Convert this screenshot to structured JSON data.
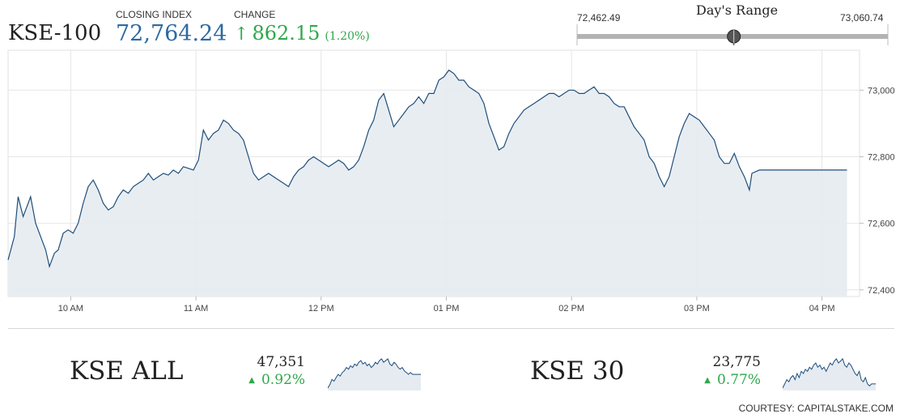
{
  "header": {
    "index_name": "KSE-100",
    "closing_label": "CLOSING INDEX",
    "closing_value": "72,764.24",
    "change_label": "CHANGE",
    "change_arrow": "↑",
    "change_value": "862.15",
    "change_pct": "(1.20%)",
    "up_color": "#2ea84a",
    "value_color": "#2d6aa0"
  },
  "days_range": {
    "title": "Day's Range",
    "low_label": "72,462.49",
    "high_label": "73,060.74",
    "low": 72462.49,
    "high": 73060.74,
    "current": 72764.24
  },
  "chart_data": {
    "type": "area",
    "x_ticks": [
      "10 AM",
      "11 AM",
      "12 PM",
      "01 PM",
      "02 PM",
      "03 PM",
      "04 PM"
    ],
    "y_ticks": [
      "72,400",
      "72,600",
      "72,800",
      "73,000"
    ],
    "ylim": [
      72380,
      73120
    ],
    "xlim": [
      9.5,
      16.3
    ],
    "grid": true,
    "line_color": "#1f4e7a",
    "fill_color": "#e6ebf1",
    "series": [
      {
        "points": [
          [
            9.5,
            72490
          ],
          [
            9.55,
            72560
          ],
          [
            9.58,
            72680
          ],
          [
            9.62,
            72620
          ],
          [
            9.66,
            72660
          ],
          [
            9.68,
            72680
          ],
          [
            9.72,
            72600
          ],
          [
            9.76,
            72560
          ],
          [
            9.8,
            72520
          ],
          [
            9.83,
            72470
          ],
          [
            9.87,
            72510
          ],
          [
            9.9,
            72520
          ],
          [
            9.94,
            72570
          ],
          [
            9.98,
            72580
          ],
          [
            10.02,
            72570
          ],
          [
            10.06,
            72600
          ],
          [
            10.1,
            72660
          ],
          [
            10.14,
            72710
          ],
          [
            10.18,
            72730
          ],
          [
            10.22,
            72700
          ],
          [
            10.26,
            72660
          ],
          [
            10.3,
            72640
          ],
          [
            10.34,
            72650
          ],
          [
            10.38,
            72680
          ],
          [
            10.42,
            72700
          ],
          [
            10.46,
            72690
          ],
          [
            10.5,
            72710
          ],
          [
            10.54,
            72720
          ],
          [
            10.58,
            72730
          ],
          [
            10.62,
            72750
          ],
          [
            10.66,
            72730
          ],
          [
            10.7,
            72740
          ],
          [
            10.74,
            72750
          ],
          [
            10.78,
            72745
          ],
          [
            10.82,
            72760
          ],
          [
            10.86,
            72750
          ],
          [
            10.9,
            72770
          ],
          [
            10.94,
            72765
          ],
          [
            10.98,
            72760
          ],
          [
            11.02,
            72790
          ],
          [
            11.06,
            72880
          ],
          [
            11.1,
            72850
          ],
          [
            11.14,
            72870
          ],
          [
            11.18,
            72880
          ],
          [
            11.22,
            72910
          ],
          [
            11.26,
            72900
          ],
          [
            11.3,
            72880
          ],
          [
            11.34,
            72870
          ],
          [
            11.38,
            72850
          ],
          [
            11.42,
            72800
          ],
          [
            11.46,
            72750
          ],
          [
            11.5,
            72730
          ],
          [
            11.54,
            72740
          ],
          [
            11.58,
            72750
          ],
          [
            11.62,
            72740
          ],
          [
            11.66,
            72730
          ],
          [
            11.7,
            72720
          ],
          [
            11.74,
            72710
          ],
          [
            11.78,
            72740
          ],
          [
            11.82,
            72760
          ],
          [
            11.86,
            72770
          ],
          [
            11.9,
            72790
          ],
          [
            11.94,
            72800
          ],
          [
            11.98,
            72790
          ],
          [
            12.02,
            72780
          ],
          [
            12.06,
            72770
          ],
          [
            12.1,
            72780
          ],
          [
            12.14,
            72790
          ],
          [
            12.18,
            72780
          ],
          [
            12.22,
            72760
          ],
          [
            12.26,
            72770
          ],
          [
            12.3,
            72790
          ],
          [
            12.34,
            72830
          ],
          [
            12.38,
            72880
          ],
          [
            12.42,
            72910
          ],
          [
            12.46,
            72970
          ],
          [
            12.5,
            72990
          ],
          [
            12.54,
            72940
          ],
          [
            12.58,
            72890
          ],
          [
            12.62,
            72910
          ],
          [
            12.66,
            72930
          ],
          [
            12.7,
            72950
          ],
          [
            12.74,
            72960
          ],
          [
            12.78,
            72980
          ],
          [
            12.82,
            72960
          ],
          [
            12.86,
            72990
          ],
          [
            12.9,
            72990
          ],
          [
            12.94,
            73030
          ],
          [
            12.98,
            73040
          ],
          [
            13.02,
            73060
          ],
          [
            13.06,
            73050
          ],
          [
            13.1,
            73030
          ],
          [
            13.14,
            73030
          ],
          [
            13.18,
            73010
          ],
          [
            13.22,
            73000
          ],
          [
            13.26,
            72990
          ],
          [
            13.3,
            72960
          ],
          [
            13.34,
            72900
          ],
          [
            13.38,
            72860
          ],
          [
            13.42,
            72820
          ],
          [
            13.46,
            72830
          ],
          [
            13.5,
            72870
          ],
          [
            13.54,
            72900
          ],
          [
            13.58,
            72920
          ],
          [
            13.62,
            72940
          ],
          [
            13.66,
            72950
          ],
          [
            13.7,
            72960
          ],
          [
            13.74,
            72970
          ],
          [
            13.78,
            72980
          ],
          [
            13.82,
            72990
          ],
          [
            13.86,
            72990
          ],
          [
            13.9,
            72980
          ],
          [
            13.94,
            72990
          ],
          [
            13.98,
            73000
          ],
          [
            14.02,
            73000
          ],
          [
            14.06,
            72990
          ],
          [
            14.1,
            72990
          ],
          [
            14.14,
            73000
          ],
          [
            14.18,
            73010
          ],
          [
            14.22,
            72990
          ],
          [
            14.26,
            72990
          ],
          [
            14.3,
            72980
          ],
          [
            14.34,
            72960
          ],
          [
            14.38,
            72950
          ],
          [
            14.42,
            72950
          ],
          [
            14.46,
            72920
          ],
          [
            14.5,
            72890
          ],
          [
            14.54,
            72870
          ],
          [
            14.58,
            72850
          ],
          [
            14.62,
            72800
          ],
          [
            14.66,
            72780
          ],
          [
            14.7,
            72740
          ],
          [
            14.74,
            72710
          ],
          [
            14.78,
            72740
          ],
          [
            14.82,
            72800
          ],
          [
            14.86,
            72860
          ],
          [
            14.9,
            72900
          ],
          [
            14.94,
            72930
          ],
          [
            14.98,
            72920
          ],
          [
            15.02,
            72910
          ],
          [
            15.06,
            72890
          ],
          [
            15.1,
            72870
          ],
          [
            15.14,
            72850
          ],
          [
            15.18,
            72800
          ],
          [
            15.22,
            72780
          ],
          [
            15.26,
            72780
          ],
          [
            15.3,
            72810
          ],
          [
            15.34,
            72770
          ],
          [
            15.38,
            72740
          ],
          [
            15.42,
            72700
          ],
          [
            15.44,
            72750
          ],
          [
            15.5,
            72760
          ],
          [
            15.6,
            72760
          ],
          [
            15.7,
            72760
          ],
          [
            15.8,
            72760
          ],
          [
            15.9,
            72760
          ],
          [
            16.0,
            72760
          ],
          [
            16.1,
            72760
          ],
          [
            16.2,
            72760
          ]
        ]
      }
    ]
  },
  "sub_indices": [
    {
      "name": "KSE ALL",
      "value": "47,351",
      "change": "0.92%",
      "arrow": "▲",
      "spark": [
        0,
        2,
        5,
        4,
        6,
        8,
        7,
        9,
        10,
        12,
        11,
        13,
        12,
        14,
        13,
        15,
        16,
        14,
        15,
        13,
        14,
        12,
        13,
        15,
        14,
        16,
        17,
        15,
        16,
        17,
        14,
        13,
        15,
        14,
        12,
        11,
        12,
        10,
        9,
        8,
        9,
        8,
        8,
        8,
        8,
        8
      ]
    },
    {
      "name": "KSE 30",
      "value": "23,775",
      "change": "0.77%",
      "arrow": "▲",
      "spark": [
        2,
        4,
        6,
        5,
        7,
        8,
        6,
        9,
        7,
        10,
        9,
        11,
        10,
        12,
        11,
        13,
        14,
        12,
        13,
        11,
        12,
        10,
        12,
        14,
        13,
        15,
        16,
        14,
        15,
        16,
        13,
        12,
        14,
        13,
        11,
        9,
        8,
        10,
        6,
        5,
        7,
        4,
        3,
        4,
        4,
        4
      ]
    }
  ],
  "footer": {
    "courtesy": "COURTESY: CAPITALSTAKE.COM"
  }
}
